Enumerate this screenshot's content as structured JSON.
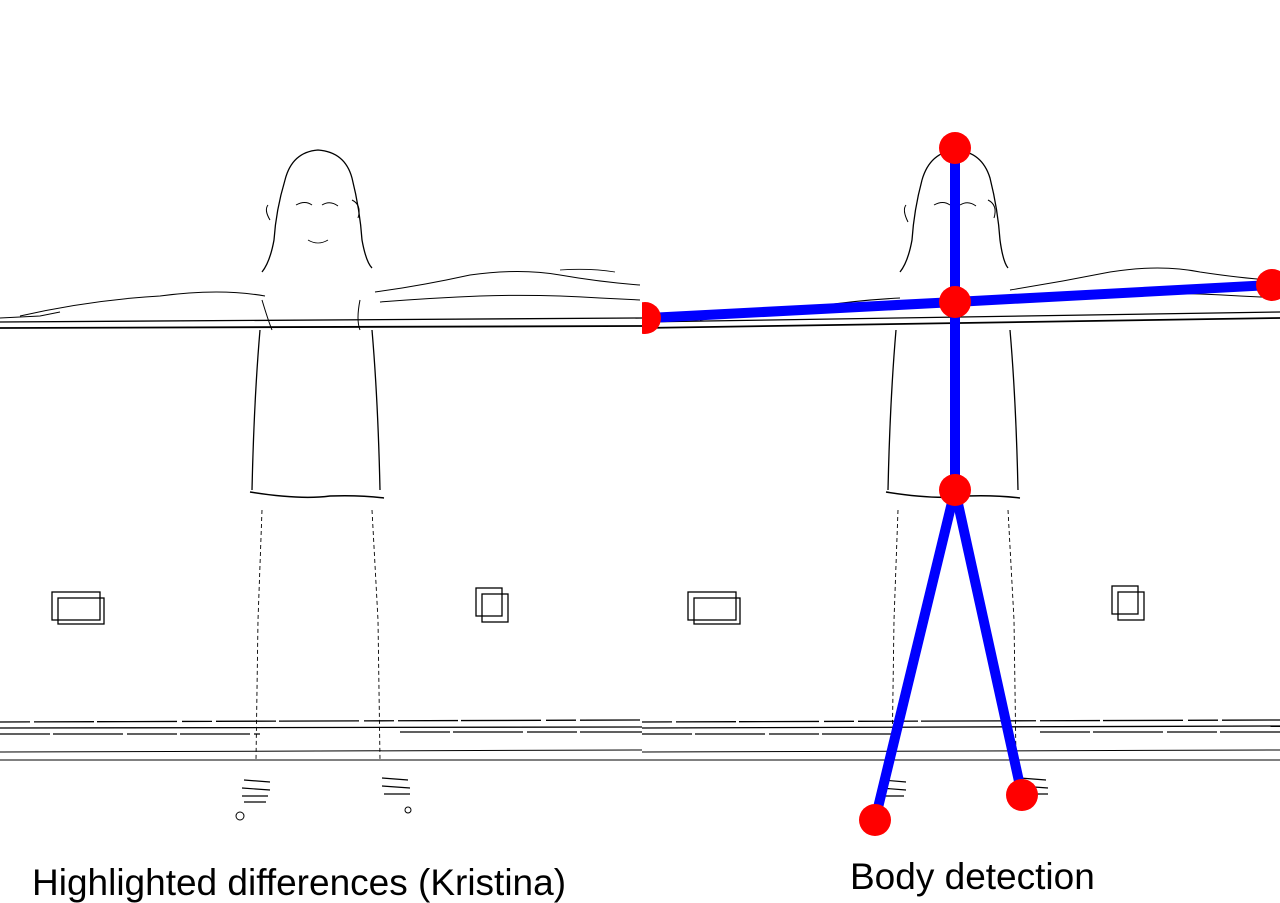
{
  "panels": {
    "left": {
      "caption": "Highlighted differences (Kristina)"
    },
    "right": {
      "caption": "Body detection"
    }
  },
  "skeleton": {
    "joint_color": "#ff0000",
    "bone_color": "#0000ff",
    "joints": [
      "head",
      "neck",
      "left-hand",
      "right-hand",
      "hip",
      "left-foot",
      "right-foot"
    ],
    "bones": [
      [
        "head",
        "neck"
      ],
      [
        "neck",
        "left-hand"
      ],
      [
        "neck",
        "right-hand"
      ],
      [
        "neck",
        "hip"
      ],
      [
        "hip",
        "left-foot"
      ],
      [
        "hip",
        "right-foot"
      ]
    ]
  }
}
